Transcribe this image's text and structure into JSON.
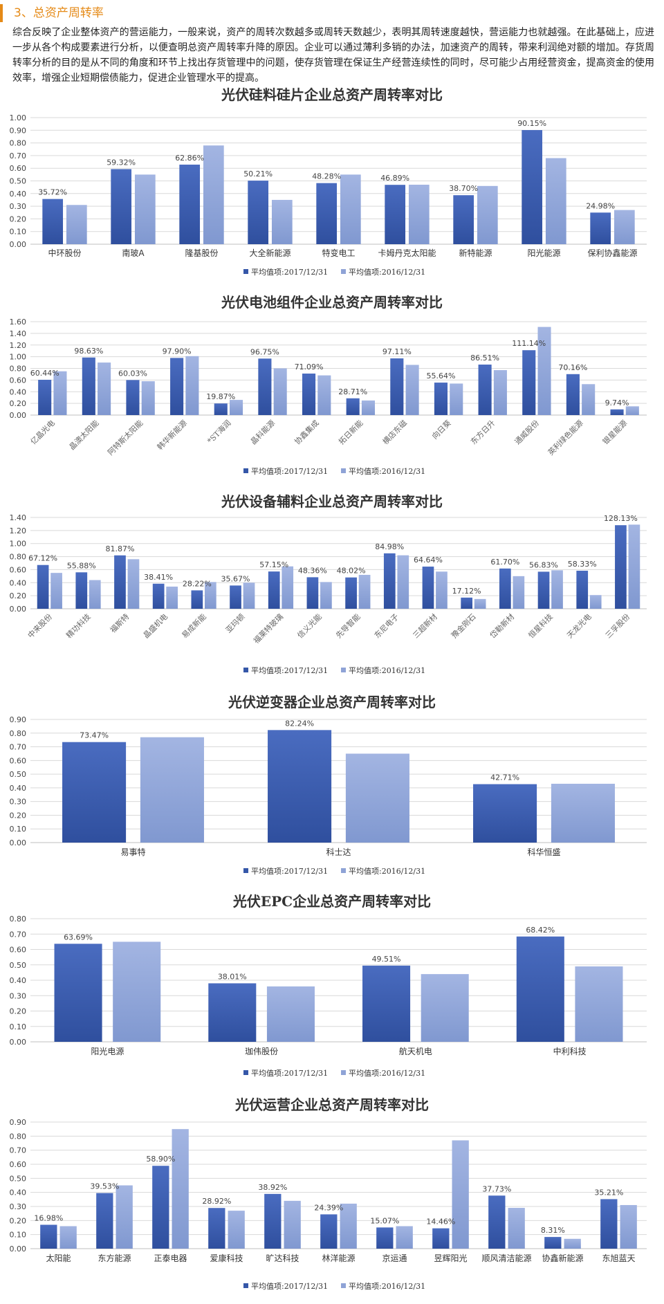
{
  "section": {
    "title": "3、总资产周转率",
    "intro": "综合反映了企业整体资产的营运能力，一般来说，资产的周转次数越多或周转天数越少，表明其周转速度越快，营运能力也就越强。在此基础上，应进一步从各个构成要素进行分析，以便查明总资产周转率升降的原因。企业可以通过薄利多销的办法，加速资产的周转，带来利润绝对额的增加。存货周转率分析的目的是从不同的角度和环节上找出存货管理中的问题，使存货管理在保证生产经营连续性的同时，尽可能少占用经营资金，提高资金的使用效率，增强企业短期偿债能力，促进企业管理水平的提高。"
  },
  "colors": {
    "series2017": "#3557a8",
    "series2016": "#8fa3d6",
    "grid": "#d9d9d9",
    "accent": "#e58a17"
  },
  "chart_data": [
    {
      "type": "bar",
      "title": "光伏硅料硅片企业总资产周转率对比",
      "categories": [
        "中环股份",
        "南玻A",
        "隆基股份",
        "大全新能源",
        "特变电工",
        "卡姆丹克太阳能",
        "新特能源",
        "阳光能源",
        "保利协鑫能源"
      ],
      "series": [
        {
          "name": "平均值项:2017/12/31",
          "values": [
            0.3572,
            0.5932,
            0.6286,
            0.5021,
            0.4828,
            0.4689,
            0.387,
            0.9015,
            0.2498
          ],
          "labels": [
            "35.72%",
            "59.32%",
            "62.86%",
            "50.21%",
            "48.28%",
            "46.89%",
            "38.70%",
            "90.15%",
            "24.98%"
          ]
        },
        {
          "name": "平均值项:2016/12/31",
          "values": [
            0.31,
            0.55,
            0.78,
            0.35,
            0.55,
            0.47,
            0.46,
            0.68,
            0.27
          ]
        }
      ],
      "ylim": [
        0,
        1.0
      ],
      "yticks": [
        "0.00",
        "0.10",
        "0.20",
        "0.30",
        "0.40",
        "0.50",
        "0.60",
        "0.70",
        "0.80",
        "0.90",
        "1.00"
      ],
      "xlabel_rotated": false,
      "legend_position": "bottom"
    },
    {
      "type": "bar",
      "title": "光伏电池组件企业总资产周转率对比",
      "categories": [
        "亿晶光电",
        "晶澳太阳能",
        "阿特斯太阳能",
        "韩华新能源",
        "*ST海润",
        "晶科能源",
        "协鑫集成",
        "拓日新能",
        "横店东磁",
        "向日葵",
        "东方日升",
        "通威股份",
        "英利绿色能源",
        "银星能源"
      ],
      "series": [
        {
          "name": "平均值项:2017/12/31",
          "values": [
            0.6044,
            0.9863,
            0.6003,
            0.979,
            0.1987,
            0.9675,
            0.7109,
            0.2871,
            0.9711,
            0.5564,
            0.8651,
            1.1114,
            0.7016,
            0.0974
          ],
          "labels": [
            "60.44%",
            "98.63%",
            "60.03%",
            "97.90%",
            "19.87%",
            "96.75%",
            "71.09%",
            "28.71%",
            "97.11%",
            "55.64%",
            "86.51%",
            "111.14%",
            "70.16%",
            "9.74%"
          ]
        },
        {
          "name": "平均值项:2016/12/31",
          "values": [
            0.75,
            0.9,
            0.58,
            1.01,
            0.26,
            0.8,
            0.68,
            0.25,
            0.86,
            0.54,
            0.77,
            1.51,
            0.53,
            0.15
          ]
        }
      ],
      "ylim": [
        0,
        1.6
      ],
      "yticks": [
        "0.00",
        "0.20",
        "0.40",
        "0.60",
        "0.80",
        "1.00",
        "1.20",
        "1.40",
        "1.60"
      ],
      "xlabel_rotated": true,
      "legend_position": "bottom"
    },
    {
      "type": "bar",
      "title": "光伏设备辅料企业总资产周转率对比",
      "categories": [
        "中来股份",
        "精功科技",
        "福斯特",
        "晶盛机电",
        "易成新能",
        "亚玛顿",
        "福莱特玻璃",
        "信义光能",
        "先导智能",
        "东尼电子",
        "三超新材",
        "豫金刚石",
        "岱勒新材",
        "恒星科技",
        "天龙光电",
        "三孚股份"
      ],
      "series": [
        {
          "name": "平均值项:2017/12/31",
          "values": [
            0.6712,
            0.5588,
            0.8187,
            0.3841,
            0.2822,
            0.3567,
            0.5715,
            0.4836,
            0.4802,
            0.8498,
            0.6464,
            0.1712,
            0.617,
            0.5683,
            0.5833,
            1.2813
          ],
          "labels": [
            "67.12%",
            "55.88%",
            "81.87%",
            "38.41%",
            "28.22%",
            "35.67%",
            "57.15%",
            "48.36%",
            "48.02%",
            "84.98%",
            "64.64%",
            "17.12%",
            "61.70%",
            "56.83%",
            "58.33%",
            "128.13%"
          ]
        },
        {
          "name": "平均值项:2016/12/31",
          "values": [
            0.55,
            0.44,
            0.76,
            0.34,
            0.41,
            0.4,
            0.65,
            0.41,
            0.52,
            0.82,
            0.57,
            0.15,
            0.5,
            0.59,
            0.21,
            1.29
          ]
        }
      ],
      "ylim": [
        0,
        1.4
      ],
      "yticks": [
        "0.00",
        "0.20",
        "0.40",
        "0.60",
        "0.80",
        "1.00",
        "1.20",
        "1.40"
      ],
      "xlabel_rotated": true,
      "legend_position": "bottom"
    },
    {
      "type": "bar",
      "title": "光伏逆变器企业总资产周转率对比",
      "categories": [
        "易事特",
        "科士达",
        "科华恒盛"
      ],
      "series": [
        {
          "name": "平均值项:2017/12/31",
          "values": [
            0.7347,
            0.8224,
            0.4271
          ],
          "labels": [
            "73.47%",
            "82.24%",
            "42.71%"
          ]
        },
        {
          "name": "平均值项:2016/12/31",
          "values": [
            0.77,
            0.65,
            0.43
          ]
        }
      ],
      "ylim": [
        0,
        0.9
      ],
      "yticks": [
        "0.00",
        "0.10",
        "0.20",
        "0.30",
        "0.40",
        "0.50",
        "0.60",
        "0.70",
        "0.80",
        "0.90"
      ],
      "xlabel_rotated": false,
      "legend_position": "bottom"
    },
    {
      "type": "bar",
      "title": "光伏EPC企业总资产周转率对比",
      "categories": [
        "阳光电源",
        "珈伟股份",
        "航天机电",
        "中利科技"
      ],
      "series": [
        {
          "name": "平均值项:2017/12/31",
          "values": [
            0.6369,
            0.3801,
            0.4951,
            0.6842
          ],
          "labels": [
            "63.69%",
            "38.01%",
            "49.51%",
            "68.42%"
          ]
        },
        {
          "name": "平均值项:2016/12/31",
          "values": [
            0.65,
            0.36,
            0.44,
            0.49
          ]
        }
      ],
      "ylim": [
        0,
        0.8
      ],
      "yticks": [
        "0.00",
        "0.10",
        "0.20",
        "0.30",
        "0.40",
        "0.50",
        "0.60",
        "0.70",
        "0.80"
      ],
      "xlabel_rotated": false,
      "legend_position": "bottom"
    },
    {
      "type": "bar",
      "title": "光伏运营企业总资产周转率对比",
      "categories": [
        "太阳能",
        "东方能源",
        "正泰电器",
        "爱康科技",
        "旷达科技",
        "林洋能源",
        "京运通",
        "昱辉阳光",
        "顺风清洁能源",
        "协鑫新能源",
        "东旭蓝天"
      ],
      "series": [
        {
          "name": "平均值项:2017/12/31",
          "values": [
            0.1698,
            0.3953,
            0.589,
            0.2892,
            0.3892,
            0.2439,
            0.1507,
            0.1446,
            0.3773,
            0.0831,
            0.3521
          ],
          "labels": [
            "16.98%",
            "39.53%",
            "58.90%",
            "28.92%",
            "38.92%",
            "24.39%",
            "15.07%",
            "14.46%",
            "37.73%",
            "8.31%",
            "35.21%"
          ]
        },
        {
          "name": "平均值项:2016/12/31",
          "values": [
            0.16,
            0.45,
            0.85,
            0.27,
            0.34,
            0.32,
            0.16,
            0.77,
            0.29,
            0.07,
            0.31
          ]
        }
      ],
      "ylim": [
        0,
        0.9
      ],
      "yticks": [
        "0.00",
        "0.10",
        "0.20",
        "0.30",
        "0.40",
        "0.50",
        "0.60",
        "0.70",
        "0.80",
        "0.90"
      ],
      "xlabel_rotated": false,
      "legend_position": "bottom"
    }
  ]
}
